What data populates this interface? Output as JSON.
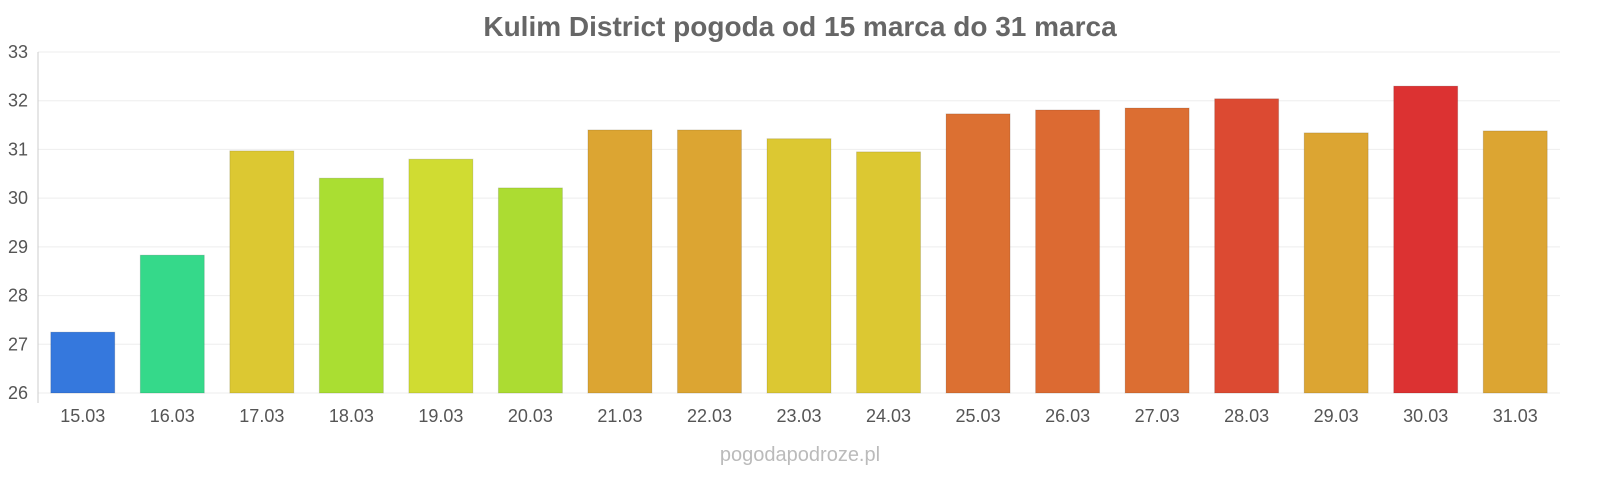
{
  "chart_data": {
    "type": "bar",
    "title": "Kulim District pogoda od 15 marca do 31 marca",
    "xlabel": "",
    "ylabel": "",
    "ylim": [
      26,
      33
    ],
    "yticks": [
      "26",
      "27",
      "28",
      "29",
      "30",
      "31",
      "32",
      "33"
    ],
    "grid": true,
    "categories": [
      "15.03",
      "16.03",
      "17.03",
      "18.03",
      "19.03",
      "20.03",
      "21.03",
      "22.03",
      "23.03",
      "24.03",
      "25.03",
      "26.03",
      "27.03",
      "28.03",
      "29.03",
      "30.03",
      "31.03"
    ],
    "values": [
      27.25,
      28.83,
      30.97,
      30.41,
      30.8,
      30.21,
      31.4,
      31.4,
      31.22,
      30.95,
      31.73,
      31.81,
      31.85,
      32.04,
      31.34,
      32.3,
      31.38
    ],
    "colors": [
      "#3578dd",
      "#35d98a",
      "#dcc832",
      "#aade32",
      "#d0dc32",
      "#acdc32",
      "#dca532",
      "#dca532",
      "#dcc832",
      "#dcc832",
      "#dc7032",
      "#dc6a32",
      "#dc6e32",
      "#dc4a32",
      "#dca532",
      "#dc3232",
      "#dca532"
    ]
  },
  "watermark": "pogodapodroze.pl"
}
